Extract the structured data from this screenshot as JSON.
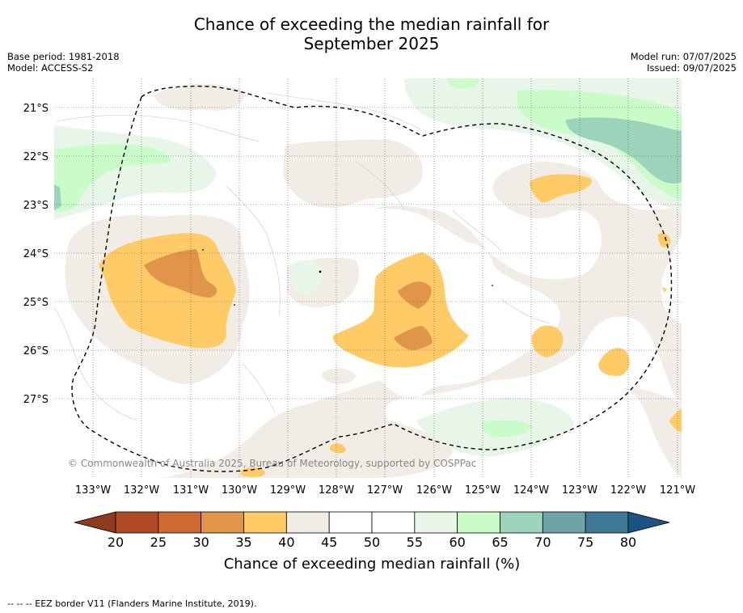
{
  "title_line1": "Chance of exceeding the median rainfall for",
  "title_line2": "September 2025",
  "base_period": "Base period: 1981-2018",
  "model": "Model: ACCESS-S2",
  "model_run": "Model run: 07/07/2025",
  "issued": "Issued: 09/07/2025",
  "copyright": "© Commonwealth of Australia 2025, Bureau of Meteorology, supported by COSPPac",
  "map": {
    "lon_labels": [
      "133°W",
      "132°W",
      "131°W",
      "130°W",
      "129°W",
      "128°W",
      "127°W",
      "126°W",
      "125°W",
      "124°W",
      "123°W",
      "122°W",
      "121°W"
    ],
    "lat_labels": [
      "21°S",
      "22°S",
      "23°S",
      "24°S",
      "25°S",
      "26°S",
      "27°S"
    ]
  },
  "colorbar": {
    "label": "Chance of exceeding median rainfall (%)",
    "ticks": [
      "20",
      "25",
      "30",
      "35",
      "40",
      "45",
      "50",
      "55",
      "60",
      "65",
      "70",
      "75",
      "80"
    ],
    "colors": {
      "below20": "#8e3a1d",
      "20-25": "#b04a25",
      "25-30": "#cf6a35",
      "30-35": "#e0954a",
      "35-40": "#fecb67",
      "40-45": "#f1ece6",
      "45-50": "#ffffff",
      "50-55": "#ffffff",
      "55-60": "#e8f5e9",
      "60-65": "#c9fcc9",
      "65-70": "#9cd3bb",
      "70-75": "#6ea4a6",
      "75-80": "#3e7a96",
      "above80": "#1c5383"
    }
  },
  "footer": "--  --  -- EEZ border V11 (Flanders Marine Institute, 2019)."
}
